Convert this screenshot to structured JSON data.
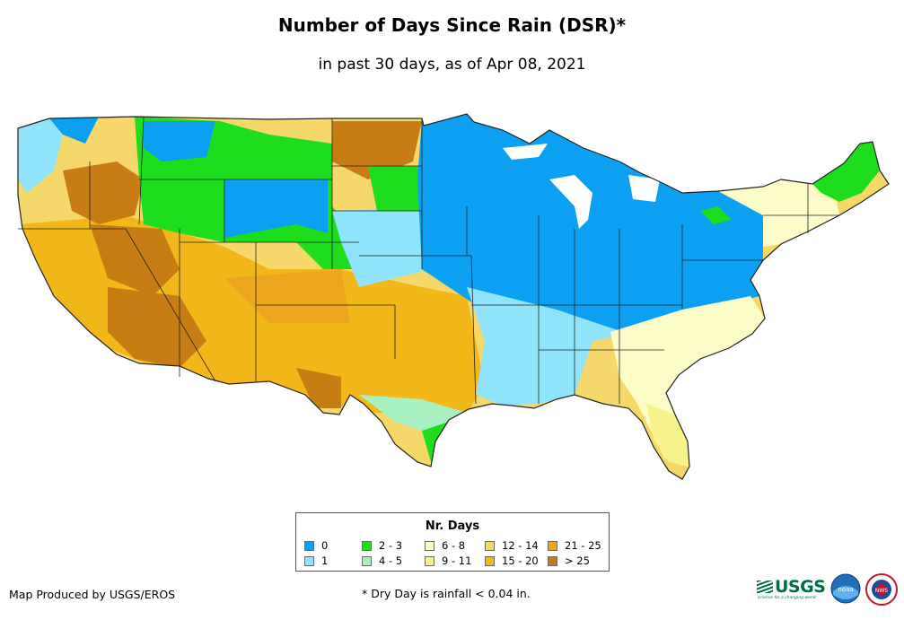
{
  "title": "Number of Days Since Rain (DSR)*",
  "subtitle": "in past 30 days, as of Apr 08, 2021",
  "legend": {
    "title": "Nr. Days",
    "items": [
      {
        "label": "0",
        "color": "#0ba0f1"
      },
      {
        "label": "1",
        "color": "#8fe3fa"
      },
      {
        "label": "2 - 3",
        "color": "#1ddd1d"
      },
      {
        "label": "4 - 5",
        "color": "#a9f0c0"
      },
      {
        "label": "6 - 8",
        "color": "#fcfcc8"
      },
      {
        "label": "9 - 11",
        "color": "#f8f28a"
      },
      {
        "label": "12 - 14",
        "color": "#f6d86a"
      },
      {
        "label": "15 - 20",
        "color": "#f2b81a"
      },
      {
        "label": "21 - 25",
        "color": "#eea61e"
      },
      {
        "label": "> 25",
        "color": "#c87d14"
      }
    ]
  },
  "footer": {
    "credit": "Map Produced by USGS/EROS",
    "footnote": "* Dry Day is rainfall < 0.04 in."
  },
  "logos": {
    "usgs": "USGS",
    "usgs_tagline": "science for a changing world",
    "noaa": "noaa",
    "nws": "NWS"
  },
  "map_colors": {
    "border": "#222222"
  }
}
